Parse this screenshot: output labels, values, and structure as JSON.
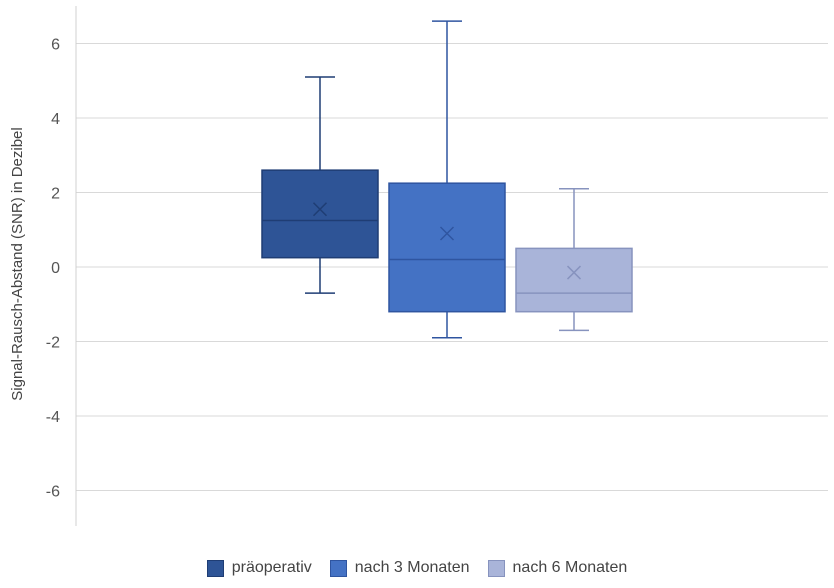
{
  "chart_data": {
    "type": "box",
    "title": "",
    "xlabel": "",
    "ylabel": "Signal-Rausch-Abstand (SNR) in Dezibel",
    "ylim": [
      -7,
      7
    ],
    "yticks": [
      6,
      4,
      2,
      0,
      -2,
      -4,
      -6
    ],
    "ytick_labels": [
      "6",
      "4",
      "2",
      "0",
      "-2",
      "-4",
      "-6"
    ],
    "grid": true,
    "legend_position": "bottom",
    "series": [
      {
        "name": "präoperativ",
        "min": -0.7,
        "q1": 0.25,
        "median": 1.25,
        "q3": 2.6,
        "max": 5.1,
        "mean": 1.55,
        "color": "#2E5496",
        "edge": "#1F3D74"
      },
      {
        "name": "nach 3 Monaten",
        "min": -1.9,
        "q1": -1.2,
        "median": 0.2,
        "q3": 2.25,
        "max": 6.6,
        "mean": 0.9,
        "color": "#4472C4",
        "edge": "#2F55A0"
      },
      {
        "name": "nach 6 Monaten",
        "min": -1.7,
        "q1": -1.2,
        "median": -0.7,
        "q3": 0.5,
        "max": 2.1,
        "mean": -0.15,
        "color": "#A9B4D9",
        "edge": "#8793BE"
      }
    ]
  }
}
